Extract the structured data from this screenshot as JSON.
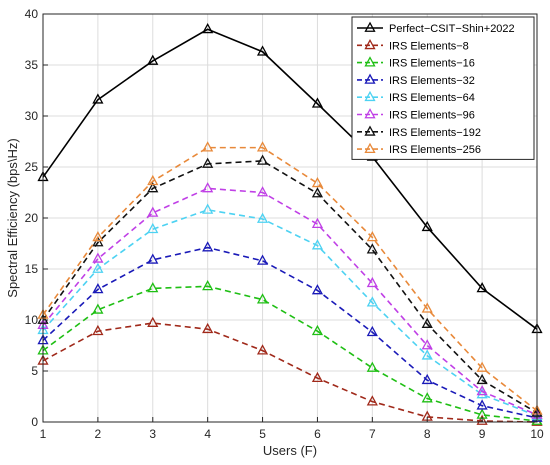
{
  "chart_data": {
    "type": "line",
    "title": "",
    "xlabel": "Users (F)",
    "ylabel": "Spectral Efficiency (bps\\Hz)",
    "x": [
      1,
      2,
      3,
      4,
      5,
      6,
      7,
      8,
      9,
      10
    ],
    "xlim": [
      1,
      10
    ],
    "ylim": [
      0,
      40
    ],
    "xticks": [
      1,
      2,
      3,
      4,
      5,
      6,
      7,
      8,
      9,
      10
    ],
    "yticks": [
      0,
      5,
      10,
      15,
      20,
      25,
      30,
      35,
      40
    ],
    "grid": true,
    "legend_position": "top-right",
    "series": [
      {
        "name": "Perfect−CSIT−Shin+2022",
        "color": "#000000",
        "dash": "solid",
        "values": [
          24.0,
          31.6,
          35.4,
          38.5,
          36.3,
          31.2,
          26.0,
          19.1,
          13.1,
          9.1
        ]
      },
      {
        "name": "IRS Elements−8",
        "color": "#a0291a",
        "dash": "dashed",
        "values": [
          6.0,
          8.9,
          9.7,
          9.1,
          7.0,
          4.3,
          2.0,
          0.5,
          0.1,
          0.0
        ]
      },
      {
        "name": "IRS Elements−16",
        "color": "#1fbf14",
        "dash": "dashed",
        "values": [
          7.0,
          11.0,
          13.1,
          13.3,
          12.0,
          8.9,
          5.3,
          2.3,
          0.7,
          0.1
        ]
      },
      {
        "name": "IRS Elements−32",
        "color": "#1a1ab8",
        "dash": "dashed",
        "values": [
          8.0,
          13.0,
          15.9,
          17.1,
          15.8,
          12.9,
          8.8,
          4.1,
          1.6,
          0.4
        ]
      },
      {
        "name": "IRS Elements−64",
        "color": "#4dd2f2",
        "dash": "dashed",
        "values": [
          9.0,
          15.0,
          18.9,
          20.8,
          19.9,
          17.3,
          11.7,
          6.5,
          2.7,
          0.6
        ]
      },
      {
        "name": "IRS Elements−96",
        "color": "#c040e6",
        "dash": "dashed",
        "values": [
          9.5,
          16.0,
          20.5,
          22.9,
          22.5,
          19.4,
          13.6,
          7.5,
          3.0,
          0.7
        ]
      },
      {
        "name": "IRS Elements−192",
        "color": "#111111",
        "dash": "dashed",
        "values": [
          10.0,
          17.6,
          22.9,
          25.3,
          25.6,
          22.4,
          16.9,
          9.6,
          4.1,
          0.9
        ]
      },
      {
        "name": "IRS Elements−256",
        "color": "#e8893a",
        "dash": "dashed",
        "values": [
          10.5,
          18.1,
          23.6,
          26.9,
          26.9,
          23.4,
          18.1,
          11.1,
          5.3,
          1.1
        ]
      }
    ]
  }
}
